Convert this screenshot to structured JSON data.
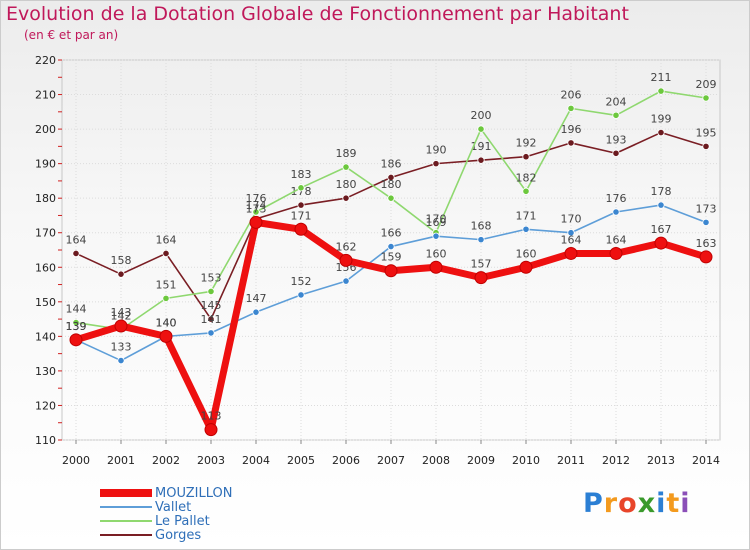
{
  "title": "Evolution de la Dotation Globale de Fonctionnement par Habitant",
  "subtitle": "(en € et par an)",
  "logo": {
    "text": "Proxiti",
    "letters": [
      {
        "ch": "P",
        "color": "#2b7fd4"
      },
      {
        "ch": "r",
        "color": "#f39a1e"
      },
      {
        "ch": "o",
        "color": "#e8452a"
      },
      {
        "ch": "x",
        "color": "#3a9a2c"
      },
      {
        "ch": "i",
        "color": "#2b7fd4"
      },
      {
        "ch": "t",
        "color": "#f39a1e"
      },
      {
        "ch": "i",
        "color": "#8b4fb8"
      }
    ]
  },
  "chart_data": {
    "type": "line",
    "title": "Evolution de la Dotation Globale de Fonctionnement par Habitant",
    "ylabel": "(en € et par an)",
    "xlabel": "",
    "x": [
      "2000",
      "2001",
      "2002",
      "2003",
      "2004",
      "2005",
      "2006",
      "2007",
      "2008",
      "2009",
      "2010",
      "2011",
      "2012",
      "2013",
      "2014"
    ],
    "ylim": [
      110,
      220
    ],
    "yticks": [
      110,
      120,
      130,
      140,
      150,
      160,
      170,
      180,
      190,
      200,
      210,
      220
    ],
    "grid": true,
    "legend_position": "bottom-left",
    "series": [
      {
        "name": "Gorges",
        "color": "#7a1e24",
        "marker": "#6b1a1f",
        "values": [
          164,
          158,
          164,
          145,
          174,
          178,
          180,
          186,
          190,
          191,
          192,
          196,
          193,
          199,
          195
        ]
      },
      {
        "name": "Le Pallet",
        "color": "#8fd86f",
        "marker": "#6cc83d",
        "values": [
          144,
          142,
          151,
          153,
          176,
          183,
          189,
          180,
          170,
          200,
          182,
          206,
          204,
          211,
          209
        ]
      },
      {
        "name": "Vallet",
        "color": "#5e9ed8",
        "marker": "#3b86d0",
        "values": [
          139,
          133,
          140,
          141,
          147,
          152,
          156,
          166,
          169,
          168,
          171,
          170,
          176,
          178,
          173
        ]
      },
      {
        "name": "MOUZILLON",
        "color": "#ee1010",
        "marker": "#ee1010",
        "bold": true,
        "values": [
          139,
          143,
          140,
          113,
          173,
          171,
          162,
          159,
          160,
          157,
          160,
          164,
          164,
          167,
          163
        ]
      }
    ],
    "legend_order": [
      "MOUZILLON",
      "Vallet",
      "Le Pallet",
      "Gorges"
    ]
  }
}
